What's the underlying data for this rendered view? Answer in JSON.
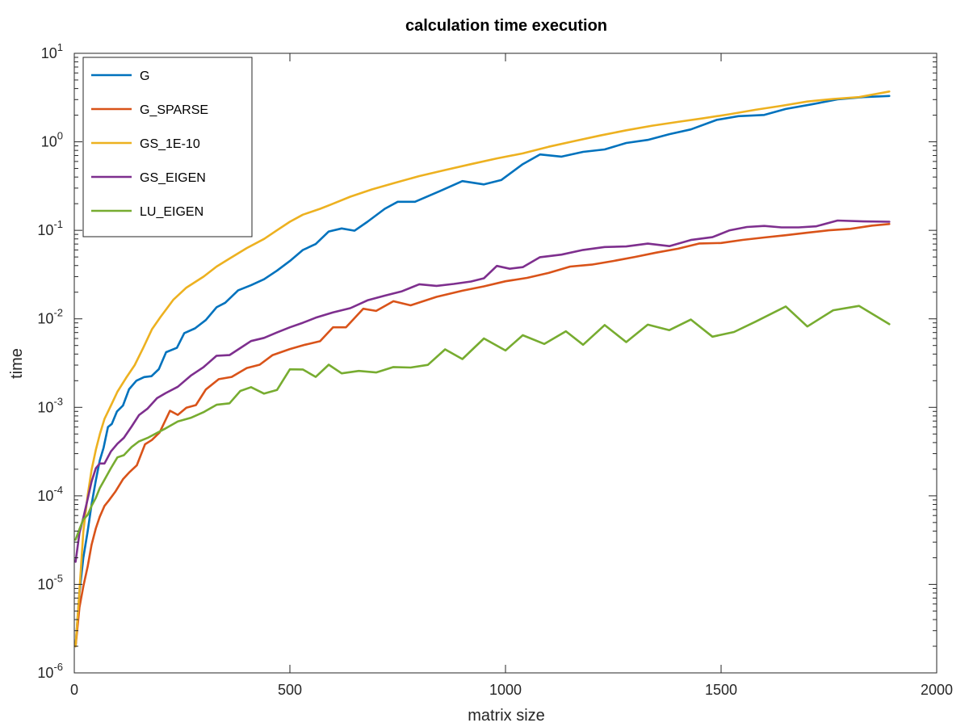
{
  "chart_data": {
    "type": "line",
    "title": "calculation time execution",
    "xlabel": "matrix size",
    "ylabel": "time",
    "xlim": [
      0,
      2000
    ],
    "ylim": [
      1e-06,
      10
    ],
    "yscale": "log",
    "grid": false,
    "legend_position": "top-left",
    "x_ticks": [
      {
        "value": 0,
        "label": "0"
      },
      {
        "value": 500,
        "label": "500"
      },
      {
        "value": 1000,
        "label": "1000"
      },
      {
        "value": 1500,
        "label": "1500"
      },
      {
        "value": 2000,
        "label": "2000"
      }
    ],
    "y_ticks": [
      {
        "value": 1e-06,
        "base": "10",
        "exp": "-6"
      },
      {
        "value": 1e-05,
        "base": "10",
        "exp": "-5"
      },
      {
        "value": 0.0001,
        "base": "10",
        "exp": "-4"
      },
      {
        "value": 0.001,
        "base": "10",
        "exp": "-3"
      },
      {
        "value": 0.01,
        "base": "10",
        "exp": "-2"
      },
      {
        "value": 0.1,
        "base": "10",
        "exp": "-1"
      },
      {
        "value": 1,
        "base": "10",
        "exp": "0"
      },
      {
        "value": 10,
        "base": "10",
        "exp": "1"
      }
    ],
    "series": [
      {
        "name": "G",
        "color": "#0072BD",
        "points": [
          [
            3,
            2e-06
          ],
          [
            12,
            8e-06
          ],
          [
            21,
            2e-05
          ],
          [
            31,
            4e-05
          ],
          [
            40,
            8e-05
          ],
          [
            50,
            0.00015
          ],
          [
            59,
            0.00025
          ],
          [
            68,
            0.00035
          ],
          [
            78,
            0.0006
          ],
          [
            87,
            0.00065
          ],
          [
            99,
            0.0009
          ],
          [
            113,
            0.00105
          ],
          [
            127,
            0.0016
          ],
          [
            144,
            0.002
          ],
          [
            162,
            0.0022
          ],
          [
            179,
            0.00225
          ],
          [
            196,
            0.0027
          ],
          [
            213,
            0.0042
          ],
          [
            238,
            0.0047
          ],
          [
            255,
            0.0069
          ],
          [
            280,
            0.0078
          ],
          [
            305,
            0.0097
          ],
          [
            330,
            0.0135
          ],
          [
            350,
            0.0152
          ],
          [
            380,
            0.021
          ],
          [
            410,
            0.024
          ],
          [
            440,
            0.028
          ],
          [
            470,
            0.035
          ],
          [
            500,
            0.045
          ],
          [
            530,
            0.06
          ],
          [
            560,
            0.07
          ],
          [
            590,
            0.097
          ],
          [
            620,
            0.105
          ],
          [
            650,
            0.099
          ],
          [
            680,
            0.125
          ],
          [
            720,
            0.175
          ],
          [
            750,
            0.21
          ],
          [
            790,
            0.21
          ],
          [
            850,
            0.28
          ],
          [
            900,
            0.36
          ],
          [
            950,
            0.33
          ],
          [
            990,
            0.37
          ],
          [
            1040,
            0.56
          ],
          [
            1080,
            0.72
          ],
          [
            1130,
            0.68
          ],
          [
            1180,
            0.77
          ],
          [
            1230,
            0.82
          ],
          [
            1280,
            0.97
          ],
          [
            1330,
            1.05
          ],
          [
            1380,
            1.22
          ],
          [
            1430,
            1.38
          ],
          [
            1490,
            1.77
          ],
          [
            1540,
            1.95
          ],
          [
            1600,
            2.01
          ],
          [
            1650,
            2.35
          ],
          [
            1710,
            2.65
          ],
          [
            1770,
            3.02
          ],
          [
            1830,
            3.2
          ],
          [
            1890,
            3.3
          ]
        ]
      },
      {
        "name": "G_SPARSE",
        "color": "#D95319",
        "points": [
          [
            3,
            2e-06
          ],
          [
            12,
            5.5e-06
          ],
          [
            21,
            9.5e-06
          ],
          [
            31,
            1.6e-05
          ],
          [
            40,
            2.8e-05
          ],
          [
            50,
            4.3e-05
          ],
          [
            59,
            5.8e-05
          ],
          [
            70,
            7.7e-05
          ],
          [
            80,
            8.85e-05
          ],
          [
            95,
            0.000111
          ],
          [
            113,
            0.000154
          ],
          [
            127,
            0.000183
          ],
          [
            145,
            0.000221
          ],
          [
            164,
            0.000383
          ],
          [
            180,
            0.000428
          ],
          [
            198,
            0.000521
          ],
          [
            222,
            0.000916
          ],
          [
            240,
            0.000822
          ],
          [
            260,
            0.00099
          ],
          [
            282,
            0.00106
          ],
          [
            305,
            0.00159
          ],
          [
            335,
            0.00208
          ],
          [
            365,
            0.00221
          ],
          [
            400,
            0.00278
          ],
          [
            430,
            0.00303
          ],
          [
            460,
            0.00389
          ],
          [
            500,
            0.00456
          ],
          [
            535,
            0.00509
          ],
          [
            570,
            0.00559
          ],
          [
            600,
            0.00802
          ],
          [
            630,
            0.00802
          ],
          [
            670,
            0.013
          ],
          [
            700,
            0.0123
          ],
          [
            740,
            0.0158
          ],
          [
            780,
            0.0142
          ],
          [
            840,
            0.0177
          ],
          [
            900,
            0.0208
          ],
          [
            950,
            0.0233
          ],
          [
            1000,
            0.0266
          ],
          [
            1050,
            0.029
          ],
          [
            1100,
            0.033
          ],
          [
            1150,
            0.039
          ],
          [
            1200,
            0.041
          ],
          [
            1250,
            0.045
          ],
          [
            1300,
            0.05
          ],
          [
            1350,
            0.056
          ],
          [
            1400,
            0.062
          ],
          [
            1450,
            0.071
          ],
          [
            1500,
            0.072
          ],
          [
            1550,
            0.078
          ],
          [
            1600,
            0.083
          ],
          [
            1650,
            0.088
          ],
          [
            1700,
            0.094
          ],
          [
            1750,
            0.1
          ],
          [
            1800,
            0.104
          ],
          [
            1850,
            0.113
          ],
          [
            1890,
            0.118
          ]
        ]
      },
      {
        "name": "GS_1E-10",
        "color": "#EDB120",
        "points": [
          [
            3,
            2e-06
          ],
          [
            12,
            8.5e-06
          ],
          [
            21,
            3.95e-05
          ],
          [
            31,
            0.000102
          ],
          [
            40,
            0.000196
          ],
          [
            50,
            0.000332
          ],
          [
            60,
            0.000511
          ],
          [
            70,
            0.00074
          ],
          [
            85,
            0.00105
          ],
          [
            100,
            0.0015
          ],
          [
            120,
            0.00215
          ],
          [
            140,
            0.003
          ],
          [
            160,
            0.0047
          ],
          [
            180,
            0.0076
          ],
          [
            200,
            0.0105
          ],
          [
            230,
            0.0165
          ],
          [
            260,
            0.0225
          ],
          [
            300,
            0.03
          ],
          [
            330,
            0.039
          ],
          [
            360,
            0.048
          ],
          [
            400,
            0.063
          ],
          [
            440,
            0.08
          ],
          [
            470,
            0.1
          ],
          [
            500,
            0.125
          ],
          [
            530,
            0.15
          ],
          [
            570,
            0.175
          ],
          [
            600,
            0.2
          ],
          [
            640,
            0.24
          ],
          [
            690,
            0.29
          ],
          [
            740,
            0.34
          ],
          [
            800,
            0.41
          ],
          [
            860,
            0.48
          ],
          [
            920,
            0.56
          ],
          [
            980,
            0.65
          ],
          [
            1040,
            0.74
          ],
          [
            1100,
            0.88
          ],
          [
            1160,
            1.02
          ],
          [
            1220,
            1.18
          ],
          [
            1280,
            1.35
          ],
          [
            1340,
            1.52
          ],
          [
            1400,
            1.68
          ],
          [
            1460,
            1.85
          ],
          [
            1520,
            2.05
          ],
          [
            1580,
            2.3
          ],
          [
            1640,
            2.55
          ],
          [
            1700,
            2.85
          ],
          [
            1760,
            3.05
          ],
          [
            1820,
            3.2
          ],
          [
            1890,
            3.7
          ]
        ]
      },
      {
        "name": "GS_EIGEN",
        "color": "#7E2F8E",
        "points": [
          [
            3,
            1.8e-05
          ],
          [
            12,
            3.8e-05
          ],
          [
            21,
            5.65e-05
          ],
          [
            31,
            9.24e-05
          ],
          [
            40,
            0.000145
          ],
          [
            50,
            0.000205
          ],
          [
            59,
            0.000232
          ],
          [
            70,
            0.000232
          ],
          [
            85,
            0.000318
          ],
          [
            100,
            0.000388
          ],
          [
            115,
            0.000453
          ],
          [
            133,
            0.000607
          ],
          [
            150,
            0.000817
          ],
          [
            170,
            0.000968
          ],
          [
            192,
            0.00127
          ],
          [
            212,
            0.00145
          ],
          [
            240,
            0.00171
          ],
          [
            270,
            0.00228
          ],
          [
            300,
            0.00285
          ],
          [
            330,
            0.00383
          ],
          [
            360,
            0.00389
          ],
          [
            385,
            0.00467
          ],
          [
            410,
            0.00561
          ],
          [
            440,
            0.00609
          ],
          [
            470,
            0.00702
          ],
          [
            500,
            0.00802
          ],
          [
            530,
            0.00903
          ],
          [
            560,
            0.0103
          ],
          [
            600,
            0.0118
          ],
          [
            640,
            0.0132
          ],
          [
            680,
            0.0162
          ],
          [
            720,
            0.0183
          ],
          [
            760,
            0.0205
          ],
          [
            800,
            0.0246
          ],
          [
            840,
            0.0236
          ],
          [
            880,
            0.0248
          ],
          [
            920,
            0.0264
          ],
          [
            950,
            0.0287
          ],
          [
            980,
            0.0396
          ],
          [
            1010,
            0.0368
          ],
          [
            1040,
            0.0384
          ],
          [
            1080,
            0.0497
          ],
          [
            1130,
            0.0532
          ],
          [
            1180,
            0.0601
          ],
          [
            1230,
            0.0648
          ],
          [
            1280,
            0.0657
          ],
          [
            1330,
            0.0708
          ],
          [
            1380,
            0.0663
          ],
          [
            1430,
            0.0777
          ],
          [
            1480,
            0.0837
          ],
          [
            1520,
            0.1
          ],
          [
            1560,
            0.109
          ],
          [
            1600,
            0.112
          ],
          [
            1640,
            0.108
          ],
          [
            1680,
            0.108
          ],
          [
            1720,
            0.111
          ],
          [
            1770,
            0.129
          ],
          [
            1830,
            0.126
          ],
          [
            1890,
            0.125
          ]
        ]
      },
      {
        "name": "LU_EIGEN",
        "color": "#77AC30",
        "points": [
          [
            3,
            3.2e-05
          ],
          [
            12,
            4.2e-05
          ],
          [
            21,
            5.4e-05
          ],
          [
            31,
            6.1e-05
          ],
          [
            40,
            7.7e-05
          ],
          [
            50,
            9.5e-05
          ],
          [
            59,
            0.000122
          ],
          [
            70,
            0.000152
          ],
          [
            85,
            0.000206
          ],
          [
            100,
            0.000272
          ],
          [
            115,
            0.000288
          ],
          [
            133,
            0.000356
          ],
          [
            150,
            0.000413
          ],
          [
            170,
            0.000452
          ],
          [
            192,
            0.000515
          ],
          [
            212,
            0.000579
          ],
          [
            240,
            0.000692
          ],
          [
            270,
            0.000761
          ],
          [
            300,
            0.000884
          ],
          [
            330,
            0.00107
          ],
          [
            360,
            0.00111
          ],
          [
            385,
            0.00153
          ],
          [
            410,
            0.00169
          ],
          [
            440,
            0.00143
          ],
          [
            470,
            0.00157
          ],
          [
            500,
            0.00269
          ],
          [
            530,
            0.00268
          ],
          [
            560,
            0.00221
          ],
          [
            590,
            0.00303
          ],
          [
            620,
            0.00242
          ],
          [
            660,
            0.00258
          ],
          [
            700,
            0.00248
          ],
          [
            740,
            0.00285
          ],
          [
            780,
            0.00282
          ],
          [
            820,
            0.00302
          ],
          [
            860,
            0.00452
          ],
          [
            900,
            0.00351
          ],
          [
            950,
            0.006
          ],
          [
            1000,
            0.00439
          ],
          [
            1040,
            0.00653
          ],
          [
            1090,
            0.0052
          ],
          [
            1140,
            0.00723
          ],
          [
            1180,
            0.0051
          ],
          [
            1230,
            0.0085
          ],
          [
            1280,
            0.00546
          ],
          [
            1330,
            0.0086
          ],
          [
            1380,
            0.00745
          ],
          [
            1430,
            0.00981
          ],
          [
            1480,
            0.00629
          ],
          [
            1530,
            0.0071
          ],
          [
            1580,
            0.0093
          ],
          [
            1650,
            0.0138
          ],
          [
            1700,
            0.0082
          ],
          [
            1760,
            0.0125
          ],
          [
            1820,
            0.014
          ],
          [
            1890,
            0.0087
          ]
        ]
      }
    ]
  }
}
